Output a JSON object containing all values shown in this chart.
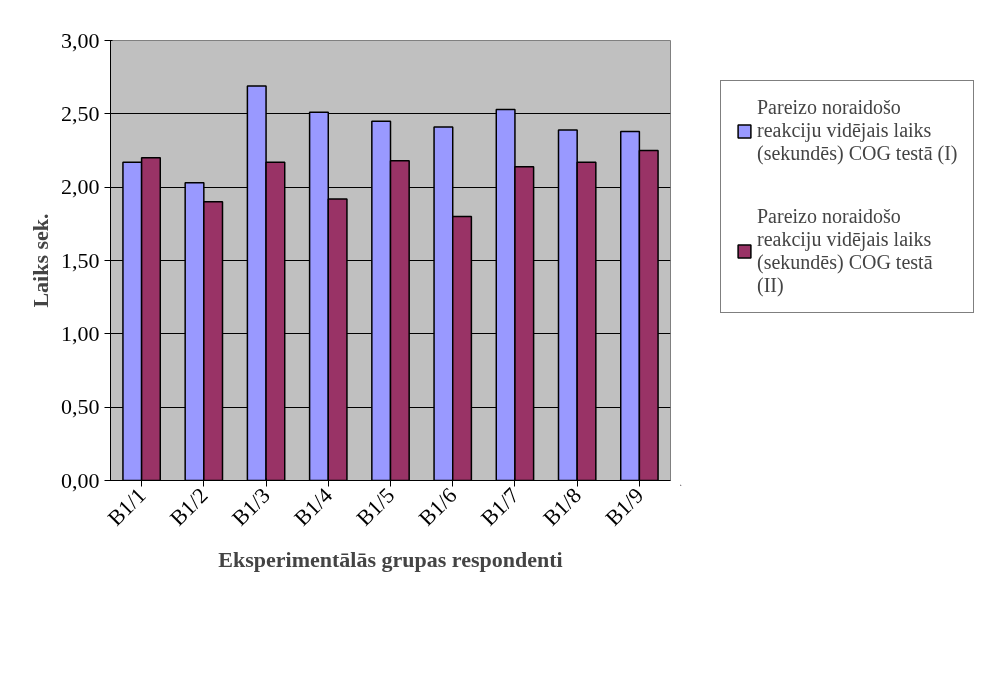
{
  "chart_data": {
    "type": "bar",
    "xlabel": "Eksperimentālās grupas respondenti",
    "ylabel": "Laiks sek.",
    "categories": [
      "B1/1",
      "B1/2",
      "B1/3",
      "B1/4",
      "B1/5",
      "B1/6",
      "B1/7",
      "B1/8",
      "B1/9"
    ],
    "series": [
      {
        "name": "Pareizo noraidošo reakciju vidējais laiks (sekundēs) COG testā (I)",
        "color": "#9999ff",
        "values": [
          2.17,
          2.03,
          2.69,
          2.51,
          2.45,
          2.41,
          2.53,
          2.39,
          2.38
        ]
      },
      {
        "name": "Pareizo noraidošo reakciju vidējais laiks (sekundēs) COG testā (II)",
        "color": "#993366",
        "values": [
          2.2,
          1.9,
          2.17,
          1.92,
          2.18,
          1.8,
          2.14,
          2.17,
          2.25
        ]
      }
    ],
    "ylim": [
      0,
      3
    ],
    "yticks": [
      {
        "value": 0,
        "label": "0,00"
      },
      {
        "value": 0.5,
        "label": "0,50"
      },
      {
        "value": 1,
        "label": "1,00"
      },
      {
        "value": 1.5,
        "label": "1,50"
      },
      {
        "value": 2,
        "label": "2,00"
      },
      {
        "value": 2.5,
        "label": "2,50"
      },
      {
        "value": 3,
        "label": "3,00"
      }
    ],
    "grid": "y",
    "legend": "right"
  }
}
